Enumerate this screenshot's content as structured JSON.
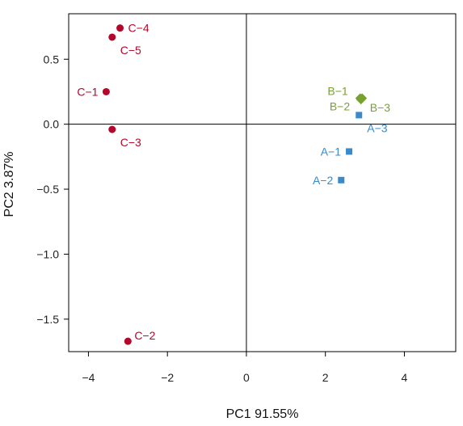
{
  "chart_data": {
    "type": "scatter",
    "xlabel": "PC1  91.55%",
    "ylabel": "PC2  3.87%",
    "xlim": [
      -4.5,
      5.3
    ],
    "ylim": [
      -1.75,
      0.85
    ],
    "x_ticks": [
      -4,
      -2,
      0,
      2,
      4
    ],
    "y_ticks": [
      0.5,
      0.0,
      -0.5,
      -1.0,
      -1.5
    ],
    "x_tick_labels": [
      "−4",
      "−2",
      "0",
      "2",
      "4"
    ],
    "y_tick_labels": [
      "0.5",
      "0.0",
      "−0.5",
      "−1.0",
      "−1.5"
    ],
    "reference_lines": {
      "x": 0,
      "y": 0
    },
    "grid": false,
    "legend": "none",
    "series": [
      {
        "group": "A",
        "marker": "square",
        "color": "#3a8ac9",
        "points": [
          {
            "label": "A−1",
            "x": 2.6,
            "y": -0.21,
            "label_side": "left"
          },
          {
            "label": "A−2",
            "x": 2.4,
            "y": -0.43,
            "label_side": "left"
          },
          {
            "label": "A−3",
            "x": 2.85,
            "y": 0.07,
            "label_side": "below-right"
          }
        ]
      },
      {
        "group": "B",
        "marker": "diamond",
        "color": "#78a12f",
        "points": [
          {
            "label": "B−1",
            "x": 2.88,
            "y": 0.2,
            "label_side": "upper-left"
          },
          {
            "label": "B−2",
            "x": 2.93,
            "y": 0.2,
            "label_side": "lower-left"
          },
          {
            "label": "B−3",
            "x": 2.9,
            "y": 0.19,
            "label_side": "lower-right"
          }
        ]
      },
      {
        "group": "C",
        "marker": "circle",
        "color": "#b5072a",
        "points": [
          {
            "label": "C−1",
            "x": -3.55,
            "y": 0.25,
            "label_side": "left"
          },
          {
            "label": "C−2",
            "x": -3.0,
            "y": -1.67,
            "label_side": "upper-right"
          },
          {
            "label": "C−3",
            "x": -3.4,
            "y": -0.04,
            "label_side": "below-right"
          },
          {
            "label": "C−4",
            "x": -3.2,
            "y": 0.74,
            "label_side": "right"
          },
          {
            "label": "C−5",
            "x": -3.4,
            "y": 0.67,
            "label_side": "below-right"
          }
        ]
      }
    ]
  }
}
